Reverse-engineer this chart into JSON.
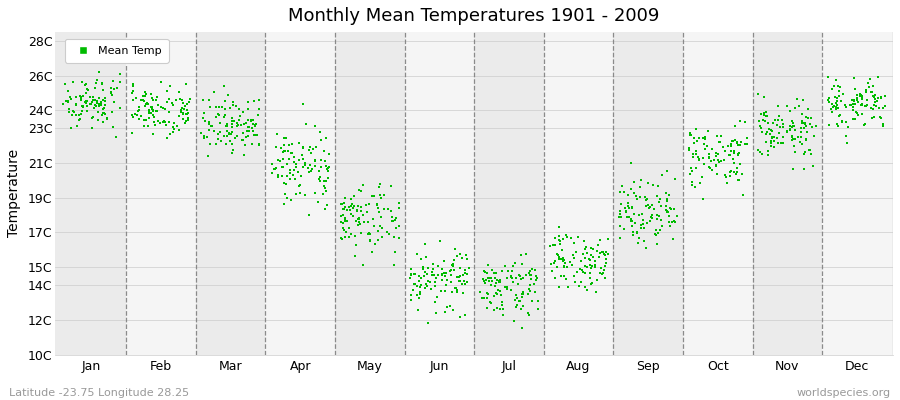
{
  "title": "Monthly Mean Temperatures 1901 - 2009",
  "ylabel": "Temperature",
  "xlabel_labels": [
    "Jan",
    "Feb",
    "Mar",
    "Apr",
    "May",
    "Jun",
    "Jul",
    "Aug",
    "Sep",
    "Oct",
    "Nov",
    "Dec"
  ],
  "ytick_labels": [
    "10C",
    "12C",
    "14C",
    "15C",
    "17C",
    "19C",
    "21C",
    "23C",
    "24C",
    "26C",
    "28C"
  ],
  "ytick_values": [
    10,
    12,
    14,
    15,
    17,
    19,
    21,
    23,
    24,
    26,
    28
  ],
  "ylim": [
    10,
    28.5
  ],
  "dot_color": "#00bb00",
  "bg_color_odd": "#ebebeb",
  "bg_color_even": "#f5f5f5",
  "subtitle": "Latitude -23.75 Longitude 28.25",
  "watermark": "worldspecies.org",
  "legend_label": "Mean Temp",
  "dot_size": 3,
  "years": 109,
  "monthly_means": [
    24.5,
    24.1,
    23.2,
    20.8,
    17.8,
    14.3,
    13.9,
    15.3,
    18.4,
    21.3,
    22.8,
    24.3
  ],
  "monthly_stds": [
    0.75,
    0.75,
    0.85,
    1.0,
    1.1,
    0.9,
    0.8,
    0.85,
    0.95,
    0.95,
    0.85,
    0.75
  ]
}
